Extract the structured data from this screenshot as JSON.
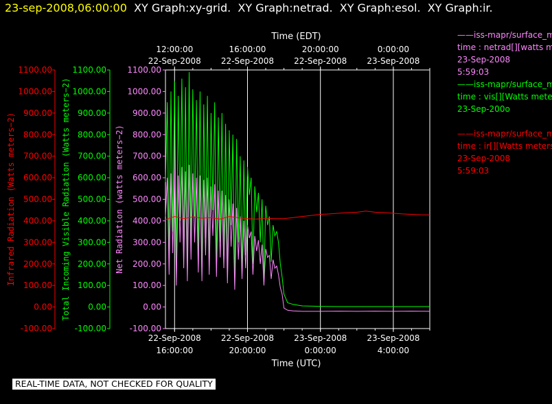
{
  "header": {
    "timestamp": "23-sep-2008,06:00:00",
    "graphs": "XY Graph:xy-grid.  XY Graph:netrad.  XY Graph:esol.  XY Graph:ir."
  },
  "colors": {
    "ir": "#ff0000",
    "vis": "#00ff00",
    "net": "#ff88ff",
    "grid": "#ffffff",
    "background": "#000000"
  },
  "legend": [
    {
      "line1": "——iss-mapr/surface_m",
      "line2": "time : netrad[][watts m",
      "line3": "23-Sep-2008",
      "line4": "5:59:03",
      "color": "#ff88ff"
    },
    {
      "line1": "——iss-mapr/surface_m",
      "line2": "time : vis[][Watts meter",
      "line3": "23-Sep-200o",
      "line4": "",
      "color": "#00ff00"
    },
    {
      "line1": "——iss-mapr/surface_m",
      "line2": "time : ir[][Watts meters",
      "line3": "23-Sep-2008",
      "line4": "5:59:03",
      "color": "#ff0000"
    }
  ],
  "footer": {
    "quality_note": "REAL-TIME DATA, NOT CHECKED FOR QUALITY"
  },
  "chart_data": {
    "type": "line",
    "xlabel_bottom": "Time (UTC)",
    "xlabel_top": "Time (EDT)",
    "x_range_utc_hours": [
      15.5,
      30.0
    ],
    "bottom_ticks": [
      {
        "x": 16,
        "date": "22-Sep-2008",
        "time": "16:00:00"
      },
      {
        "x": 20,
        "date": "22-Sep-2008",
        "time": "20:00:00"
      },
      {
        "x": 24,
        "date": "23-Sep-2008",
        "time": "0:00:00"
      },
      {
        "x": 28,
        "date": "23-Sep-2008",
        "time": "4:00:00"
      }
    ],
    "top_ticks": [
      {
        "x": 16,
        "time": "12:00:00",
        "date": "22-Sep-2008"
      },
      {
        "x": 20,
        "time": "16:00:00",
        "date": "22-Sep-2008"
      },
      {
        "x": 24,
        "time": "20:00:00",
        "date": "22-Sep-2008"
      },
      {
        "x": 28,
        "time": "0:00:00",
        "date": "23-Sep-2008"
      }
    ],
    "axes": [
      {
        "key": "ir",
        "label": "Infrared Radiation (Watts meters−2)",
        "range": [
          -100,
          1100
        ]
      },
      {
        "key": "vis",
        "label": "Total Incoming Visible Radiation (Watts meters−2)",
        "range": [
          -100,
          1100
        ]
      },
      {
        "key": "net",
        "label": "Net Radiation (watts meters−2)",
        "range": [
          -100,
          1100
        ]
      }
    ],
    "y_ticks": [
      1100,
      1000,
      900,
      800,
      700,
      600,
      500,
      400,
      300,
      200,
      100,
      0,
      -100
    ],
    "grid": true,
    "series": [
      {
        "key": "vis",
        "x": [
          15.5,
          15.6,
          15.7,
          15.8,
          15.9,
          16.0,
          16.1,
          16.2,
          16.3,
          16.4,
          16.5,
          16.6,
          16.7,
          16.8,
          16.9,
          17.0,
          17.1,
          17.2,
          17.3,
          17.4,
          17.5,
          17.6,
          17.7,
          17.8,
          17.9,
          18.0,
          18.1,
          18.2,
          18.3,
          18.4,
          18.5,
          18.6,
          18.7,
          18.8,
          18.9,
          19.0,
          19.1,
          19.2,
          19.3,
          19.4,
          19.5,
          19.6,
          19.7,
          19.8,
          19.9,
          20.0,
          20.1,
          20.2,
          20.3,
          20.4,
          20.5,
          20.6,
          20.7,
          20.8,
          20.9,
          21.0,
          21.1,
          21.2,
          21.3,
          21.4,
          21.5,
          21.6,
          21.7,
          21.8,
          21.9,
          22.0,
          22.2,
          22.5,
          23.0,
          24.0,
          25.0,
          26.0,
          27.0,
          28.0,
          29.0,
          30.0
        ],
        "values": [
          580,
          950,
          200,
          1000,
          350,
          1050,
          150,
          980,
          400,
          1060,
          250,
          1020,
          180,
          1090,
          300,
          1010,
          420,
          960,
          220,
          1000,
          150,
          940,
          320,
          980,
          200,
          900,
          450,
          950,
          180,
          880,
          300,
          900,
          240,
          850,
          140,
          820,
          380,
          800,
          100,
          780,
          300,
          700,
          160,
          680,
          240,
          650,
          520,
          600,
          200,
          560,
          440,
          530,
          300,
          500,
          120,
          470,
          380,
          420,
          210,
          380,
          330,
          350,
          300,
          200,
          140,
          60,
          20,
          12,
          5,
          3,
          2,
          2,
          2,
          2,
          2,
          2
        ]
      },
      {
        "key": "net",
        "x": [
          15.5,
          15.6,
          15.7,
          15.8,
          15.9,
          16.0,
          16.1,
          16.2,
          16.3,
          16.4,
          16.5,
          16.6,
          16.7,
          16.8,
          16.9,
          17.0,
          17.1,
          17.2,
          17.3,
          17.4,
          17.5,
          17.6,
          17.7,
          17.8,
          17.9,
          18.0,
          18.1,
          18.2,
          18.3,
          18.4,
          18.5,
          18.6,
          18.7,
          18.8,
          18.9,
          19.0,
          19.1,
          19.2,
          19.3,
          19.4,
          19.5,
          19.6,
          19.7,
          19.8,
          19.9,
          20.0,
          20.1,
          20.2,
          20.3,
          20.4,
          20.5,
          20.6,
          20.7,
          20.8,
          20.9,
          21.0,
          21.1,
          21.2,
          21.3,
          21.4,
          21.5,
          21.6,
          21.7,
          21.8,
          21.9,
          22.0,
          22.2,
          22.5,
          23.0,
          24.0,
          25.0,
          26.0,
          27.0,
          28.0,
          29.0,
          30.0
        ],
        "values": [
          420,
          600,
          150,
          620,
          250,
          640,
          100,
          610,
          300,
          650,
          180,
          630,
          120,
          660,
          220,
          620,
          300,
          600,
          160,
          610,
          120,
          590,
          240,
          600,
          150,
          560,
          330,
          570,
          140,
          540,
          230,
          540,
          180,
          520,
          110,
          500,
          280,
          480,
          80,
          460,
          220,
          420,
          130,
          400,
          180,
          380,
          320,
          350,
          150,
          330,
          260,
          310,
          200,
          290,
          100,
          270,
          230,
          240,
          130,
          220,
          180,
          190,
          150,
          90,
          60,
          -5,
          -15,
          -18,
          -20,
          -20,
          -19,
          -20,
          -19,
          -20,
          -19,
          -20
        ]
      },
      {
        "key": "ir",
        "x": [
          15.5,
          16,
          16.5,
          17,
          17.5,
          18,
          18.5,
          19,
          19.5,
          20,
          20.5,
          21,
          21.5,
          22,
          22.5,
          23,
          23.5,
          24,
          24.5,
          25,
          25.5,
          26,
          26.5,
          27,
          27.5,
          28,
          28.5,
          29,
          29.5,
          30
        ],
        "values": [
          405,
          420,
          410,
          418,
          412,
          415,
          408,
          420,
          414,
          410,
          408,
          412,
          410,
          410,
          415,
          420,
          425,
          430,
          432,
          435,
          438,
          440,
          445,
          440,
          438,
          435,
          432,
          430,
          428,
          427
        ]
      }
    ]
  }
}
